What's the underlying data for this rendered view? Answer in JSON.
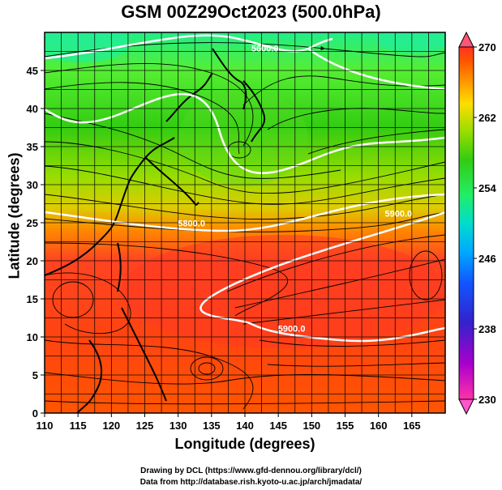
{
  "title": "GSM 00Z29Oct2023 (500.0hPa)",
  "xlabel": "Longitude (degrees)",
  "ylabel": "Latitude  (degrees)",
  "credits": {
    "line1": "Drawing by DCL (https://www.gfd-dennou.org/library/dcl/)",
    "line2": "Data from http://database.rish.kyoto-u.ac.jp/arch/jmadata/"
  },
  "map": {
    "lon_range": [
      110,
      170
    ],
    "lat_range": [
      0,
      50
    ],
    "x_ticks": [
      110,
      115,
      120,
      125,
      130,
      135,
      140,
      145,
      150,
      155,
      160,
      165
    ],
    "y_ticks": [
      0,
      5,
      10,
      15,
      20,
      25,
      30,
      35,
      40,
      45
    ],
    "grid": true,
    "contour_labels": [
      {
        "text": "5600.0",
        "lon": 143,
        "lat": 47.5
      },
      {
        "text": "5800.0",
        "lon": 132,
        "lat": 24.5
      },
      {
        "text": "5900.0",
        "lon": 163,
        "lat": 25.8
      },
      {
        "text": "5900.0",
        "lon": 147,
        "lat": 10.7
      }
    ]
  },
  "colorbar": {
    "tick_labels": [
      "270",
      "262",
      "254",
      "246",
      "238",
      "230"
    ],
    "min": 230,
    "max": 270,
    "colors": [
      "#ff33aa",
      "#aa00cc",
      "#3322cc",
      "#1155ff",
      "#00aaff",
      "#00ddcc",
      "#22ee66",
      "#33cc11",
      "#99dd00",
      "#ffdd00",
      "#ff9900",
      "#ff5500",
      "#ff3322"
    ]
  }
}
